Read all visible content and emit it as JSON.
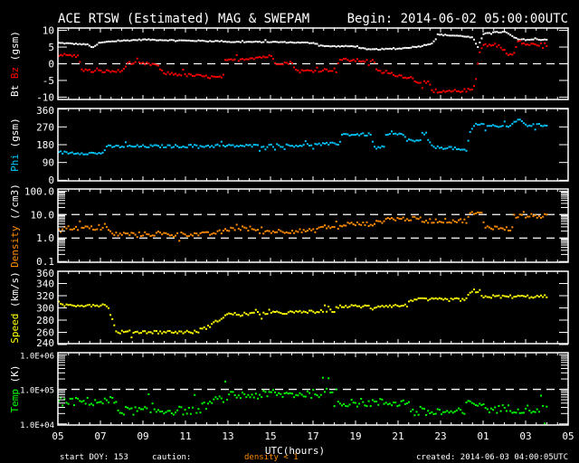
{
  "header": {
    "title": "ACE RTSW (Estimated) MAG & SWEPAM",
    "begin": "Begin: 2014-06-02 05:00:00UTC"
  },
  "footer": {
    "start_doy": "start DOY: 153",
    "caution": "caution:",
    "caution_value": "density < 1",
    "created": "created: 2014-06-03 04:00:05UTC"
  },
  "colors": {
    "background": "#000000",
    "axes": "#ffffff",
    "bt": "#ffffff",
    "bz": "#ff0000",
    "phi": "#00c8ff",
    "density": "#ff8c00",
    "speed": "#ffff00",
    "temp": "#00ff00"
  },
  "chart_data": [
    {
      "type": "scatter",
      "panel": "mag",
      "ylabel_parts": [
        "Bt",
        "Bz",
        "(gsm)"
      ],
      "ylim": [
        -10.7,
        10.7
      ],
      "yticks": [
        10,
        5,
        0,
        -5,
        -10
      ],
      "ytick_labels": [
        "10",
        "5",
        "0",
        "-5",
        "-10"
      ],
      "reference_lines": [
        0
      ],
      "series": [
        {
          "name": "Bt",
          "color_key": "bt",
          "x": [
            0,
            1.4,
            1.6,
            1.9,
            2.5,
            4,
            6,
            7.8,
            8,
            10,
            12,
            12.5,
            14,
            14.5,
            16,
            17,
            17.6,
            17.8,
            19.1,
            19.5,
            19.7,
            20,
            21,
            21.6,
            23
          ],
          "y": [
            6.5,
            6,
            5,
            6.5,
            7,
            7.5,
            7.2,
            7,
            6.8,
            6.8,
            6.5,
            5.5,
            5.5,
            4.5,
            4.8,
            5.5,
            6.5,
            9,
            8.5,
            8,
            5,
            9.5,
            9.8,
            7.5,
            7.5
          ]
        },
        {
          "name": "Bz",
          "color_key": "bz",
          "x": [
            0,
            0.9,
            1.1,
            1.6,
            3,
            3.2,
            4.6,
            4.9,
            7.7,
            7.8,
            9,
            10,
            10.2,
            11,
            11.2,
            13,
            13.2,
            14.8,
            15,
            16.6,
            16.8,
            17.4,
            17.6,
            19.5,
            19.8,
            20,
            20.8,
            21.1,
            21.4,
            21.6,
            22,
            23
          ],
          "y": [
            3,
            2.5,
            -1.5,
            -2,
            -2,
            0.5,
            0,
            -2.5,
            -4,
            1,
            2,
            2.5,
            0.5,
            0.5,
            -2,
            -1.5,
            1.5,
            1,
            -2,
            -4,
            -5,
            -5.5,
            -8.5,
            -7.5,
            4,
            6,
            5.5,
            3,
            3,
            7,
            6,
            6
          ]
        }
      ]
    },
    {
      "type": "scatter",
      "panel": "phi",
      "ylabel_parts": [
        "Phi",
        "(gsm)"
      ],
      "ylim": [
        -3,
        363
      ],
      "yticks": [
        360,
        270,
        180,
        90,
        0
      ],
      "ytick_labels": [
        "360",
        "270",
        "180",
        "90",
        "0"
      ],
      "series": [
        {
          "name": "Phi",
          "color_key": "phi",
          "x": [
            0,
            2,
            2.3,
            11,
            13.2,
            13.3,
            14.7,
            14.8,
            15.3,
            15.4,
            16.2,
            16.3,
            17,
            17.1,
            17.3,
            17.4,
            17.8,
            18.4,
            19.2,
            19.3,
            19.6,
            21.2,
            21.4,
            21.8,
            22,
            23
          ],
          "y": [
            145,
            140,
            175,
            180,
            190,
            236,
            236,
            170,
            170,
            236,
            236,
            210,
            200,
            240,
            240,
            185,
            170,
            170,
            150,
            240,
            290,
            272,
            305,
            305,
            283,
            283
          ]
        }
      ]
    },
    {
      "type": "scatter",
      "panel": "density",
      "yscale": "log",
      "ylabel_parts": [
        "Density",
        "(/cm3)"
      ],
      "ylim": [
        0.093,
        123
      ],
      "yticks": [
        100,
        10,
        1,
        0.1
      ],
      "ytick_labels": [
        "100.0",
        "10.0",
        "1.0",
        "0.1"
      ],
      "reference_lines": [
        10,
        1
      ],
      "series": [
        {
          "name": "Density",
          "color_key": "density",
          "x": [
            0,
            2.3,
            2.5,
            7,
            7.8,
            8,
            9.2,
            9.3,
            12,
            12.3,
            13.3,
            13.4,
            14.7,
            15,
            15.5,
            17,
            17.1,
            19.2,
            19.3,
            19.9,
            20,
            21.3,
            21.4,
            23
          ],
          "y": [
            3,
            2.8,
            1.6,
            1.6,
            2.1,
            2.8,
            2.8,
            2.1,
            2.2,
            3.2,
            3.2,
            4.3,
            4.3,
            5,
            7.2,
            7.2,
            5.9,
            5.9,
            12,
            12,
            3.5,
            2.5,
            9.4,
            9.4
          ]
        }
      ]
    },
    {
      "type": "scatter",
      "panel": "speed",
      "ylabel_parts": [
        "Speed",
        "(km/s)"
      ],
      "ylim": [
        241.5,
        360
      ],
      "yticks": [
        360,
        340,
        320,
        300,
        280,
        260,
        240
      ],
      "ytick_labels": [
        "360",
        "340",
        "320",
        "300",
        "280",
        "260",
        "240"
      ],
      "series": [
        {
          "name": "Speed",
          "color_key": "speed",
          "x": [
            0,
            2.3,
            2.7,
            6.5,
            7.2,
            7.9,
            12,
            13,
            13.1,
            14.6,
            14.7,
            15,
            16.4,
            16.5,
            19.1,
            19.5,
            20,
            23
          ],
          "y": [
            306,
            306,
            262,
            262,
            274,
            291,
            295,
            297,
            304,
            304,
            299,
            305,
            305,
            315,
            315,
            330,
            320,
            320
          ]
        }
      ]
    },
    {
      "type": "scatter",
      "panel": "temp",
      "yscale": "log",
      "ylabel_parts": [
        "Temp",
        "(K)"
      ],
      "ylim": [
        9300,
        1150000
      ],
      "yticks": [
        1000000,
        100000,
        10000
      ],
      "ytick_labels": [
        "1.0E+06",
        "1.0E+05",
        "1.0E+04"
      ],
      "reference_lines": [
        100000
      ],
      "series": [
        {
          "name": "Temp",
          "color_key": "temp",
          "x": [
            0,
            2.7,
            2.8,
            6.5,
            7,
            8,
            12,
            13,
            13.1,
            16.5,
            16.6,
            19.1,
            19.2,
            19.9,
            20,
            23
          ],
          "y": [
            46800,
            46800,
            25700,
            25700,
            39800,
            69200,
            79400,
            91200,
            43700,
            43700,
            22900,
            22900,
            41700,
            41700,
            28800,
            28800
          ]
        }
      ]
    }
  ],
  "xaxis": {
    "label": "UTC(hours)",
    "range_hours": [
      0,
      24
    ],
    "tick_labels": [
      "05",
      "07",
      "09",
      "11",
      "13",
      "15",
      "17",
      "19",
      "21",
      "23",
      "01",
      "03",
      "05"
    ]
  }
}
